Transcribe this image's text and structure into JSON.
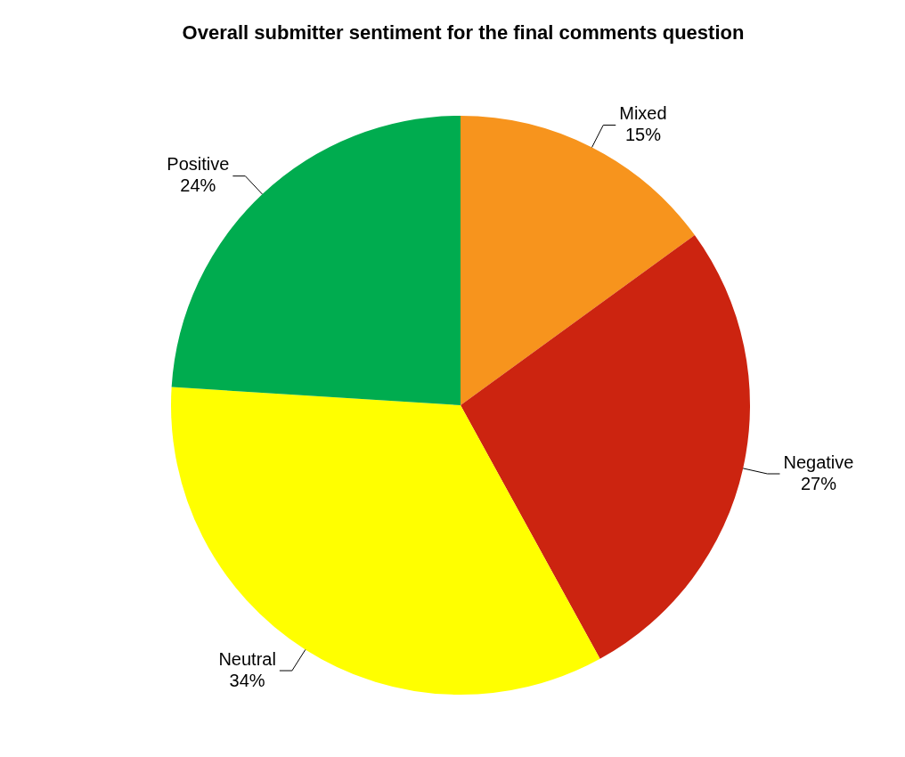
{
  "chart_data": {
    "type": "pie",
    "title": "Overall submitter sentiment for the final comments question",
    "categories": [
      "Mixed",
      "Negative",
      "Neutral",
      "Positive"
    ],
    "values": [
      15,
      27,
      34,
      24
    ],
    "value_labels": [
      "15%",
      "27%",
      "34%",
      "24%"
    ],
    "colors": [
      "#f7941d",
      "#cc2410",
      "#ffff00",
      "#00ac4f"
    ],
    "legend": false
  }
}
